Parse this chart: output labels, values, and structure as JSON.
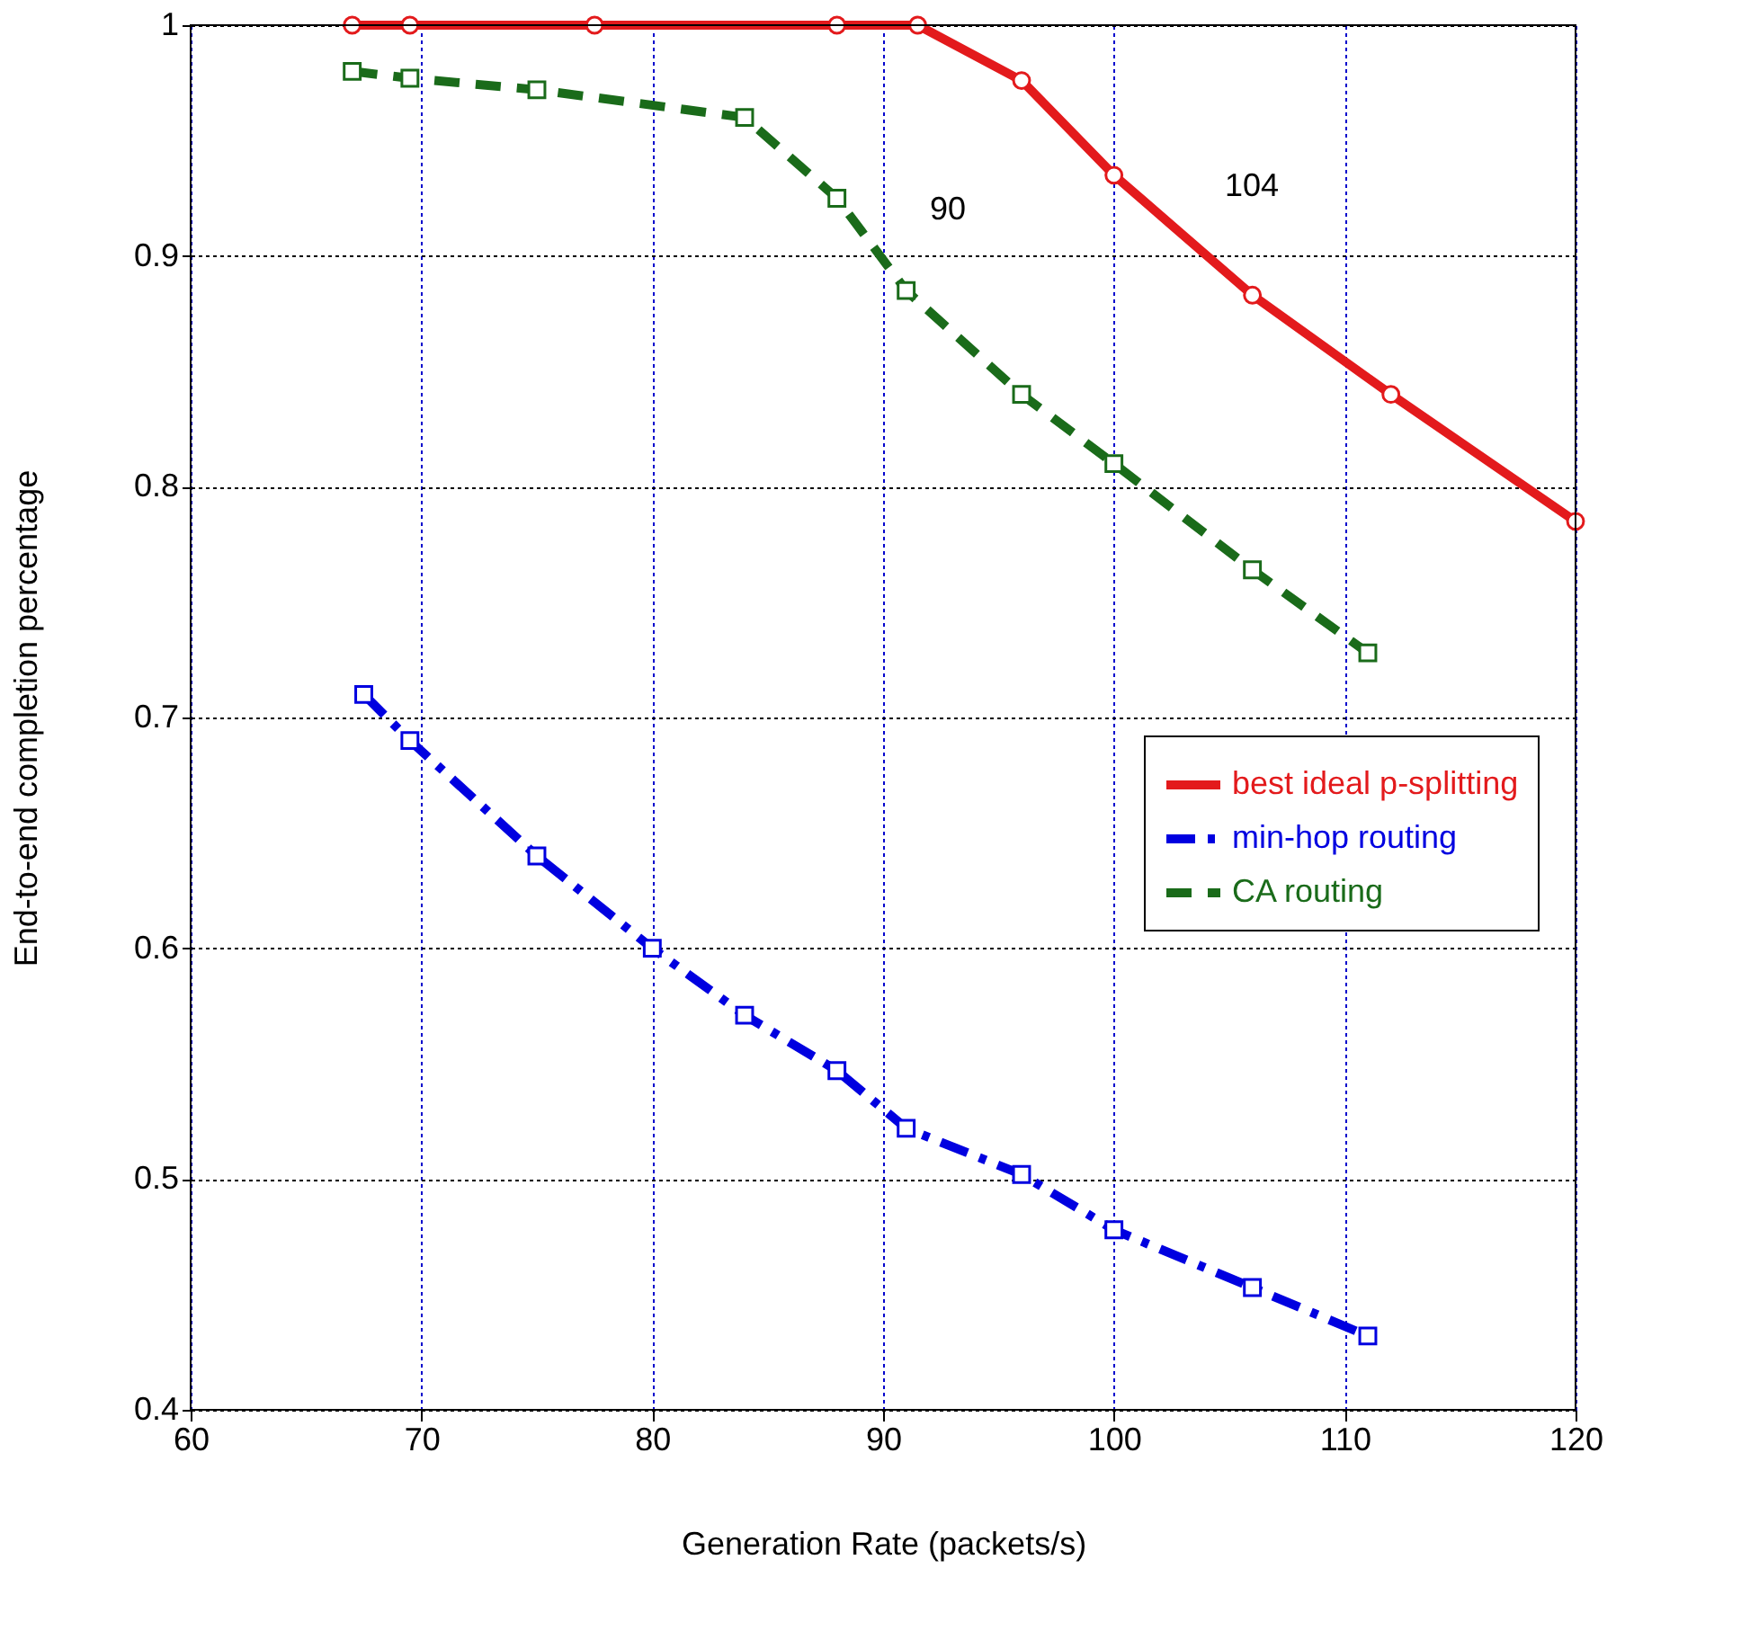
{
  "chart_data": {
    "type": "line",
    "xlabel": "Generation Rate (packets/s)",
    "ylabel": "End-to-end completion percentage",
    "xlim": [
      60,
      120
    ],
    "xticks": [
      60,
      70,
      80,
      90,
      100,
      110,
      120
    ],
    "ylim": [
      0.4,
      1
    ],
    "yticks": [
      0.4,
      0.5,
      0.6,
      0.7,
      0.8,
      0.9,
      1
    ],
    "grid": true,
    "legend": "right",
    "series": [
      {
        "name": "best ideal p-splitting",
        "color": "#e31a1c",
        "marker": "circle",
        "line_style": "solid",
        "x": [
          67,
          69.5,
          77.5,
          88,
          91.5,
          96,
          100,
          106,
          112,
          120
        ],
        "values": [
          1,
          1,
          1,
          1,
          1,
          0.976,
          0.935,
          0.883,
          0.84,
          0.785
        ]
      },
      {
        "name": "min-hop routing",
        "color": "#0000e0",
        "marker": "square",
        "line_style": "dashdot",
        "x": [
          67.5,
          69.5,
          75,
          80,
          84,
          88,
          91,
          96,
          100,
          106,
          111
        ],
        "values": [
          0.71,
          0.69,
          0.64,
          0.6,
          0.571,
          0.547,
          0.522,
          0.502,
          0.478,
          0.453,
          0.432
        ]
      },
      {
        "name": "CA routing",
        "color": "#1a6b1a",
        "marker": "square",
        "line_style": "dashed",
        "x": [
          67,
          69.5,
          75,
          84,
          88,
          91,
          96,
          100,
          106,
          111
        ],
        "values": [
          0.98,
          0.977,
          0.972,
          0.96,
          0.925,
          0.885,
          0.84,
          0.81,
          0.764,
          0.728
        ]
      }
    ],
    "annotations": [
      "90",
      "104"
    ]
  }
}
